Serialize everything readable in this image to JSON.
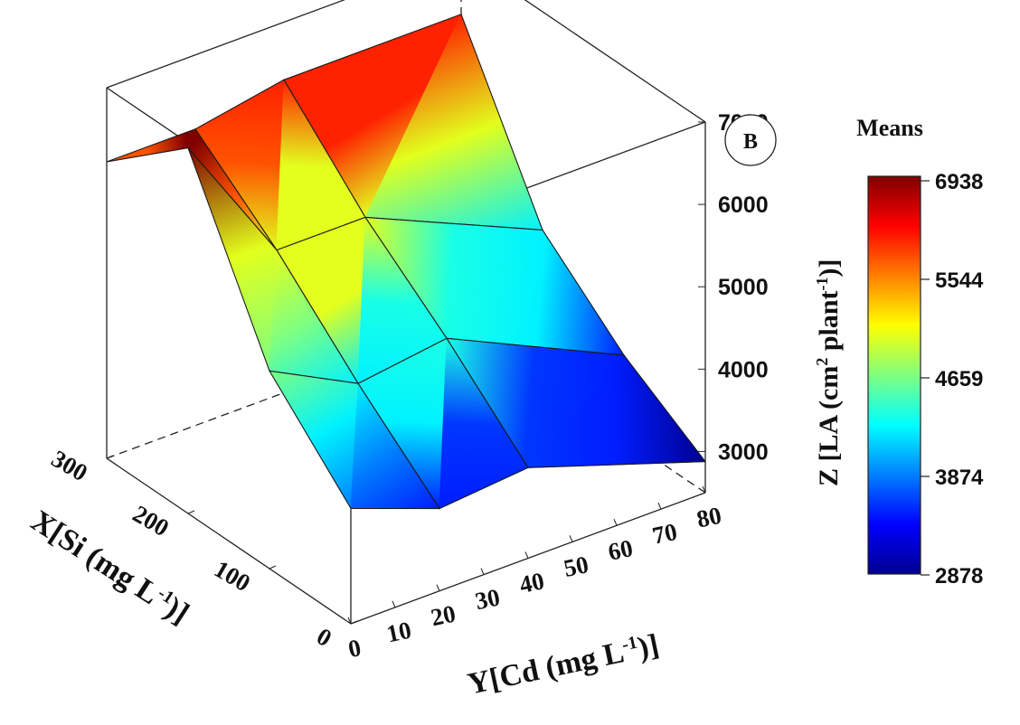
{
  "chart_data": {
    "type": "surface3d",
    "panel_label": "B",
    "x_axis": {
      "label": "X[Si (mg L-1)]",
      "ticks": [
        0,
        100,
        200,
        300
      ],
      "range": [
        0,
        300
      ]
    },
    "y_axis": {
      "label": "Y[Cd (mg L-1)]",
      "ticks": [
        0,
        10,
        20,
        30,
        40,
        50,
        60,
        70,
        80
      ],
      "range": [
        0,
        80
      ]
    },
    "z_axis": {
      "label": "Z [LA (cm2 plant-1)]",
      "ticks": [
        3000,
        4000,
        5000,
        6000,
        7000
      ],
      "range": [
        2500,
        7000
      ]
    },
    "grid_x": [
      0,
      100,
      200,
      300
    ],
    "grid_y": [
      0,
      20,
      40,
      80
    ],
    "z_values": [
      [
        3900,
        3500,
        3600,
        2878
      ],
      [
        4900,
        4350,
        4500,
        3500
      ],
      [
        6938,
        5300,
        5300,
        4350
      ],
      [
        6100,
        6100,
        6300,
        6300
      ]
    ],
    "colorbar": {
      "title": "Means",
      "ticks": [
        "6938",
        "5544",
        "4659",
        "3874",
        "2878"
      ],
      "min": 2878,
      "max": 6938
    },
    "colors": {
      "axis": "#222222",
      "surface_edge": "#1a1a1a"
    }
  }
}
